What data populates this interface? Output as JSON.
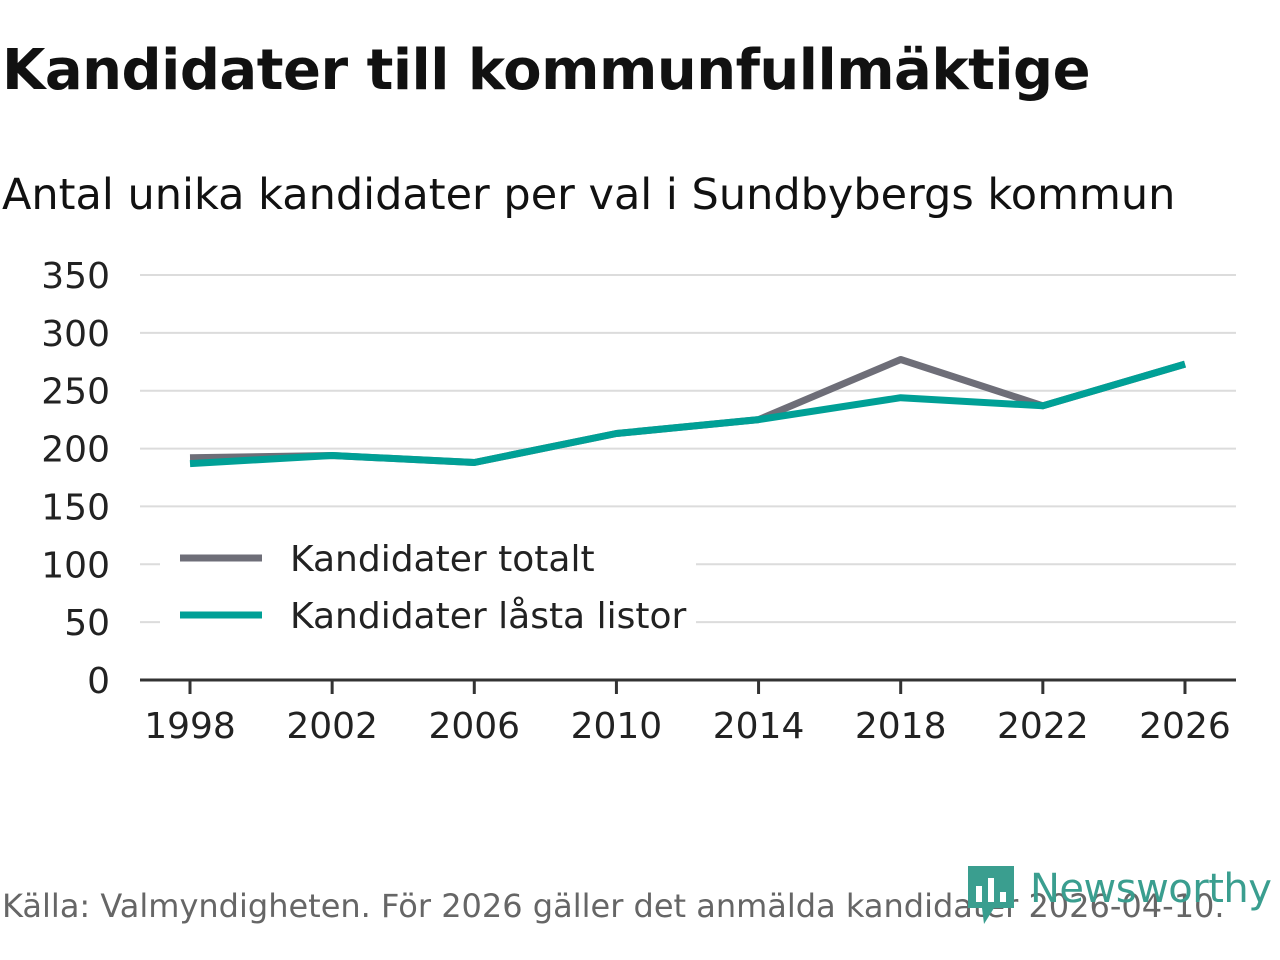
{
  "title": "Kandidater till kommunfullmäktige",
  "subtitle": "Antal unika kandidater per val i Sundbybergs kommun",
  "source": "Källa: Valmyndigheten. För 2026 gäller det anmälda kandidater 2026-04-10.",
  "brand": "Newsworthy",
  "colors": {
    "grid": "#dcdcdc",
    "axis": "#333333",
    "brand": "#3a9e8f"
  },
  "chart_data": {
    "type": "line",
    "title": "Kandidater till kommunfullmäktige",
    "subtitle": "Antal unika kandidater per val i Sundbybergs kommun",
    "xlabel": "",
    "ylabel": "",
    "x": [
      "1998",
      "2002",
      "2006",
      "2010",
      "2014",
      "2018",
      "2022",
      "2026"
    ],
    "yticks": [
      "0",
      "50",
      "100",
      "150",
      "200",
      "250",
      "300",
      "350"
    ],
    "ylim": [
      0,
      350
    ],
    "grid": true,
    "legend_position": "bottom-left",
    "series": [
      {
        "name": "Kandidater totalt",
        "color": "#6e6e78",
        "values": [
          192,
          194,
          188,
          213,
          225,
          277,
          237,
          273
        ]
      },
      {
        "name": "Kandidater låsta listor",
        "color": "#00a096",
        "values": [
          187,
          194,
          188,
          213,
          225,
          244,
          237,
          273
        ]
      }
    ]
  }
}
